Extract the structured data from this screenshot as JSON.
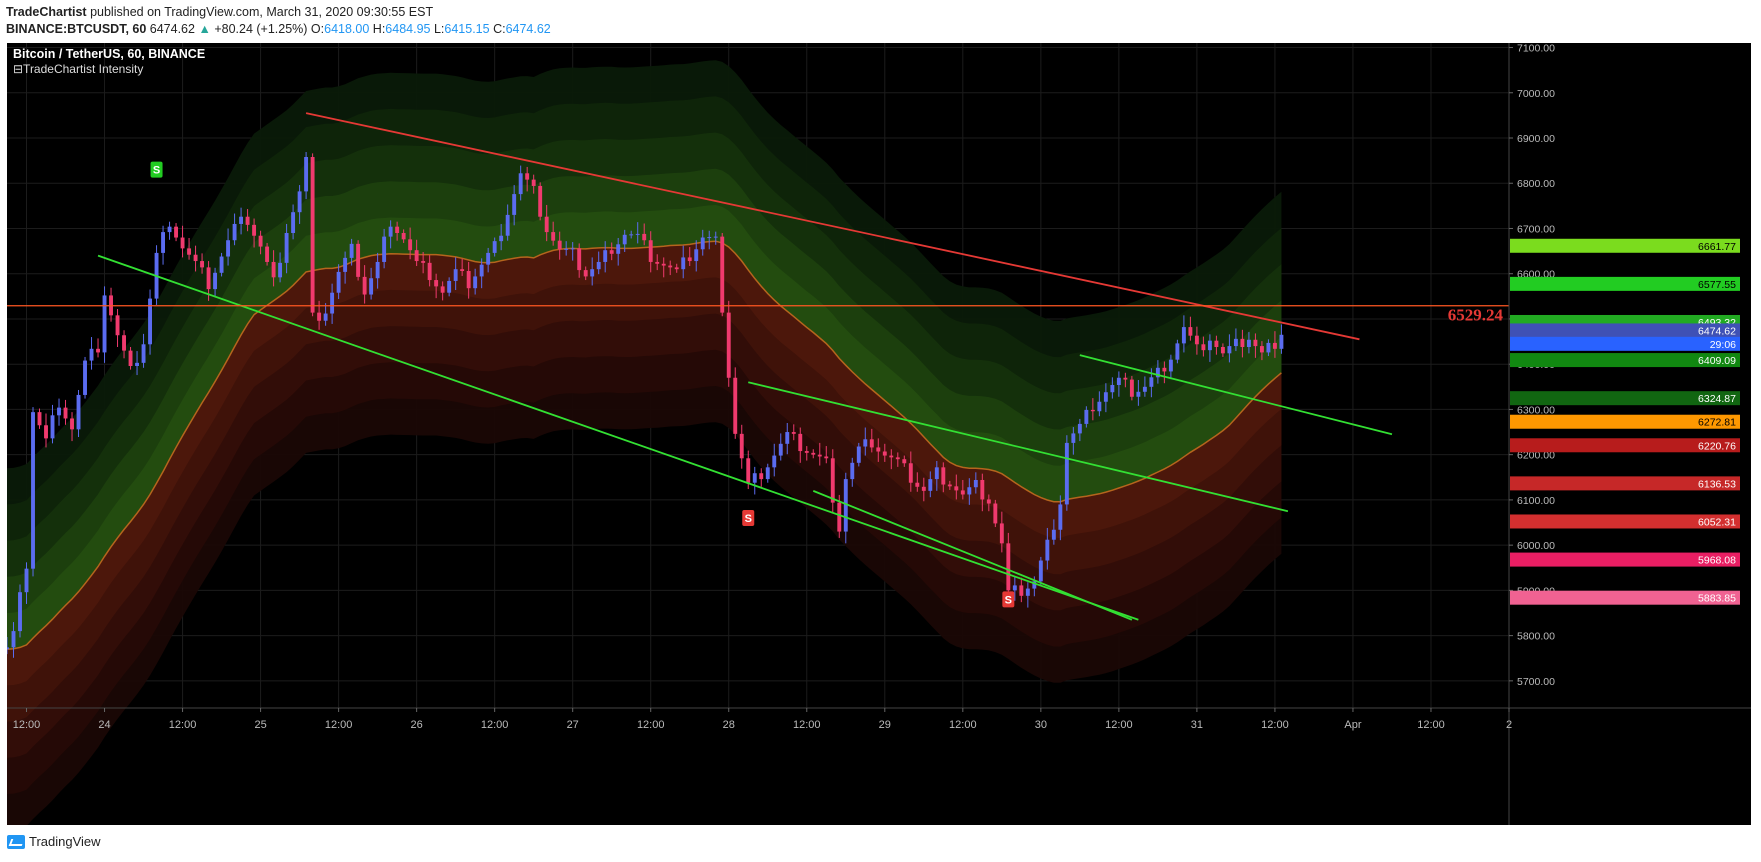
{
  "header": {
    "author": "TradeChartist",
    "published": "published on TradingView.com, March 31, 2020 09:30:55 EST",
    "symbol": "BINANCE:BTCUSDT, 60",
    "last": "6474.62",
    "change_arrow": "▲",
    "change": "+80.24 (+1.25%)",
    "o_label": "O:",
    "o_value": "6418.00",
    "h_label": "H:",
    "h_value": "6484.95",
    "l_label": "L:",
    "l_value": "6415.15",
    "c_label": "C:",
    "c_value": "6474.62"
  },
  "footer": {
    "brand": "TradingView",
    "logo_icon": "tradingview-logo-icon"
  },
  "chart_data": {
    "type": "candlestick",
    "title": "Bitcoin / TetherUS, 60, BINANCE",
    "indicator": "TradeChartist Intensity",
    "ylim": [
      5640,
      7110
    ],
    "y_ticks": [
      5700,
      5800,
      5900,
      6000,
      6100,
      6200,
      6300,
      6400,
      6500,
      6600,
      6700,
      6800,
      6900,
      7000,
      7100
    ],
    "x_ticks": [
      {
        "t": 12,
        "label": "12:00"
      },
      {
        "t": 24,
        "label": "24"
      },
      {
        "t": 36,
        "label": "12:00"
      },
      {
        "t": 48,
        "label": "25"
      },
      {
        "t": 60,
        "label": "12:00"
      },
      {
        "t": 72,
        "label": "26"
      },
      {
        "t": 84,
        "label": "12:00"
      },
      {
        "t": 96,
        "label": "27"
      },
      {
        "t": 108,
        "label": "12:00"
      },
      {
        "t": 120,
        "label": "28"
      },
      {
        "t": 132,
        "label": "12:00"
      },
      {
        "t": 144,
        "label": "29"
      },
      {
        "t": 156,
        "label": "12:00"
      },
      {
        "t": 168,
        "label": "30"
      },
      {
        "t": 180,
        "label": "12:00"
      },
      {
        "t": 192,
        "label": "31"
      },
      {
        "t": 204,
        "label": "12:00"
      },
      {
        "t": 216,
        "label": "Apr"
      },
      {
        "t": 228,
        "label": "12:00"
      },
      {
        "t": 240,
        "label": "2"
      }
    ],
    "xlim": [
      9,
      240
    ],
    "close_path": [
      [
        9,
        5770
      ],
      [
        10,
        5800
      ],
      [
        11,
        5880
      ],
      [
        12,
        5960
      ],
      [
        13,
        6300
      ],
      [
        15,
        6230
      ],
      [
        17,
        6320
      ],
      [
        19,
        6260
      ],
      [
        21,
        6400
      ],
      [
        23,
        6440
      ],
      [
        24,
        6560
      ],
      [
        26,
        6460
      ],
      [
        28,
        6380
      ],
      [
        30,
        6450
      ],
      [
        32,
        6640
      ],
      [
        34,
        6720
      ],
      [
        36,
        6660
      ],
      [
        38,
        6620
      ],
      [
        40,
        6580
      ],
      [
        42,
        6640
      ],
      [
        44,
        6700
      ],
      [
        46,
        6720
      ],
      [
        48,
        6660
      ],
      [
        50,
        6580
      ],
      [
        52,
        6700
      ],
      [
        54,
        6780
      ],
      [
        55,
        6850
      ],
      [
        56,
        6500
      ],
      [
        58,
        6520
      ],
      [
        60,
        6600
      ],
      [
        62,
        6650
      ],
      [
        64,
        6560
      ],
      [
        66,
        6620
      ],
      [
        68,
        6720
      ],
      [
        70,
        6680
      ],
      [
        72,
        6620
      ],
      [
        74,
        6600
      ],
      [
        76,
        6560
      ],
      [
        78,
        6600
      ],
      [
        80,
        6580
      ],
      [
        82,
        6620
      ],
      [
        84,
        6660
      ],
      [
        86,
        6740
      ],
      [
        88,
        6820
      ],
      [
        90,
        6780
      ],
      [
        92,
        6700
      ],
      [
        94,
        6650
      ],
      [
        96,
        6640
      ],
      [
        98,
        6600
      ],
      [
        100,
        6620
      ],
      [
        102,
        6660
      ],
      [
        104,
        6690
      ],
      [
        106,
        6680
      ],
      [
        108,
        6640
      ],
      [
        110,
        6620
      ],
      [
        112,
        6600
      ],
      [
        114,
        6640
      ],
      [
        116,
        6680
      ],
      [
        118,
        6670
      ],
      [
        119,
        6530
      ],
      [
        120,
        6380
      ],
      [
        121,
        6250
      ],
      [
        123,
        6130
      ],
      [
        125,
        6160
      ],
      [
        127,
        6200
      ],
      [
        129,
        6240
      ],
      [
        131,
        6220
      ],
      [
        133,
        6200
      ],
      [
        135,
        6180
      ],
      [
        137,
        6040
      ],
      [
        138,
        6150
      ],
      [
        140,
        6210
      ],
      [
        142,
        6230
      ],
      [
        144,
        6200
      ],
      [
        146,
        6180
      ],
      [
        148,
        6150
      ],
      [
        150,
        6120
      ],
      [
        152,
        6160
      ],
      [
        154,
        6140
      ],
      [
        156,
        6110
      ],
      [
        158,
        6130
      ],
      [
        160,
        6100
      ],
      [
        162,
        6000
      ],
      [
        163,
        5890
      ],
      [
        165,
        5900
      ],
      [
        167,
        5920
      ],
      [
        169,
        6000
      ],
      [
        171,
        6100
      ],
      [
        172,
        6230
      ],
      [
        174,
        6260
      ],
      [
        176,
        6310
      ],
      [
        178,
        6340
      ],
      [
        180,
        6360
      ],
      [
        182,
        6340
      ],
      [
        184,
        6350
      ],
      [
        186,
        6380
      ],
      [
        188,
        6420
      ],
      [
        190,
        6480
      ],
      [
        192,
        6430
      ],
      [
        194,
        6460
      ],
      [
        196,
        6420
      ],
      [
        198,
        6440
      ],
      [
        200,
        6460
      ],
      [
        202,
        6420
      ],
      [
        204,
        6450
      ],
      [
        205,
        6475
      ]
    ],
    "lines": [
      {
        "name": "resistance-trendline",
        "color": "#e53935",
        "points": [
          [
            55,
            6955
          ],
          [
            217,
            6455
          ]
        ]
      },
      {
        "name": "support-trendline-1",
        "color": "#33e033",
        "points": [
          [
            23,
            6640
          ],
          [
            183,
            5835
          ]
        ]
      },
      {
        "name": "channel-top",
        "color": "#33e033",
        "points": [
          [
            123,
            6360
          ],
          [
            206,
            6075
          ]
        ]
      },
      {
        "name": "channel-bottom",
        "color": "#33e033",
        "points": [
          [
            133,
            6120
          ],
          [
            182,
            5835
          ]
        ]
      },
      {
        "name": "support-trendline-2",
        "color": "#33e033",
        "points": [
          [
            174,
            6420
          ],
          [
            222,
            6245
          ]
        ]
      },
      {
        "name": "horizontal-level",
        "color": "#ff5722",
        "points": [
          [
            9,
            6529.24
          ],
          [
            240,
            6529.24
          ]
        ]
      }
    ],
    "level_label": {
      "value": "6529.24",
      "color": "#e53935"
    },
    "signals": [
      {
        "t": 32,
        "price": 6830,
        "label": "S",
        "color": "#22cc22"
      },
      {
        "t": 123,
        "price": 6060,
        "label": "S",
        "color": "#e53935"
      },
      {
        "t": 163,
        "price": 5880,
        "label": "S",
        "color": "#e53935"
      }
    ],
    "price_labels": [
      {
        "value": "6661.77",
        "bg": "#7bdc1e",
        "fg": "#000"
      },
      {
        "value": "6577.55",
        "bg": "#22cc22",
        "fg": "#000"
      },
      {
        "value": "6493.32",
        "bg": "#22aa22",
        "fg": "#fff"
      },
      {
        "value": "6474.62",
        "bg": "#3f51b5",
        "fg": "#fff"
      },
      {
        "value": "29:06",
        "bg": "#2962ff",
        "fg": "#fff",
        "price": 6445
      },
      {
        "value": "6409.09",
        "bg": "#118811",
        "fg": "#fff"
      },
      {
        "value": "6324.87",
        "bg": "#116611",
        "fg": "#fff"
      },
      {
        "value": "6272.81",
        "bg": "#ff9800",
        "fg": "#000"
      },
      {
        "value": "6220.76",
        "bg": "#b71c1c",
        "fg": "#fff"
      },
      {
        "value": "6136.53",
        "bg": "#c62828",
        "fg": "#fff"
      },
      {
        "value": "6052.31",
        "bg": "#d32f2f",
        "fg": "#fff"
      },
      {
        "value": "5968.08",
        "bg": "#e91e63",
        "fg": "#fff"
      },
      {
        "value": "5883.85",
        "bg": "#f06292",
        "fg": "#fff"
      }
    ],
    "grid": true
  }
}
